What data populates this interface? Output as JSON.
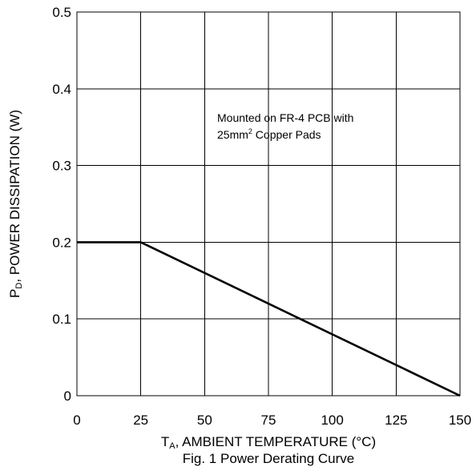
{
  "chart_data": {
    "type": "line",
    "title": "",
    "xlabel": {
      "main": "T",
      "sub": "A",
      "rest": ", AMBIENT TEMPERATURE (°C)"
    },
    "ylabel": {
      "main": "P",
      "sub": "D",
      "rest": ", POWER DISSIPATION (W)"
    },
    "caption": "Fig. 1 Power Derating Curve",
    "xlim": [
      0,
      150
    ],
    "ylim": [
      0,
      0.5
    ],
    "x_ticks": [
      0,
      25,
      50,
      75,
      100,
      125,
      150
    ],
    "x_tick_labels": [
      "0",
      "25",
      "50",
      "75",
      "100",
      "125",
      "150"
    ],
    "y_ticks": [
      0,
      0.1,
      0.2,
      0.3,
      0.4,
      0.5
    ],
    "y_tick_labels": [
      "0",
      "0.1",
      "0.2",
      "0.3",
      "0.4",
      "0.5"
    ],
    "grid": true,
    "series": [
      {
        "x": [
          0,
          25,
          150
        ],
        "y": [
          0.2,
          0.2,
          0
        ]
      }
    ],
    "annotation": {
      "line1": "Mounted on FR-4 PCB with",
      "line2_prefix": "25mm",
      "line2_sup": "2",
      "line2_suffix": " Copper Pads"
    }
  }
}
